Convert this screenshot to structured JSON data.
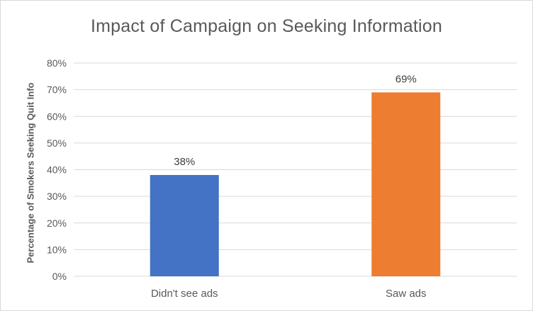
{
  "chart_data": {
    "type": "bar",
    "title": "Impact of Campaign on Seeking Information",
    "xlabel": "",
    "ylabel": "Percentage of Smokers Seeking Quit Info",
    "categories": [
      "Didn't see ads",
      "Saw ads"
    ],
    "values": [
      38,
      69
    ],
    "data_labels": [
      "38%",
      "69%"
    ],
    "colors": [
      "#4472c4",
      "#ed7d31"
    ],
    "ylim": [
      0,
      80
    ],
    "yticks": [
      0,
      10,
      20,
      30,
      40,
      50,
      60,
      70,
      80
    ],
    "ytick_labels": [
      "0%",
      "10%",
      "20%",
      "30%",
      "40%",
      "50%",
      "60%",
      "70%",
      "80%"
    ],
    "grid": true,
    "legend": "none"
  }
}
